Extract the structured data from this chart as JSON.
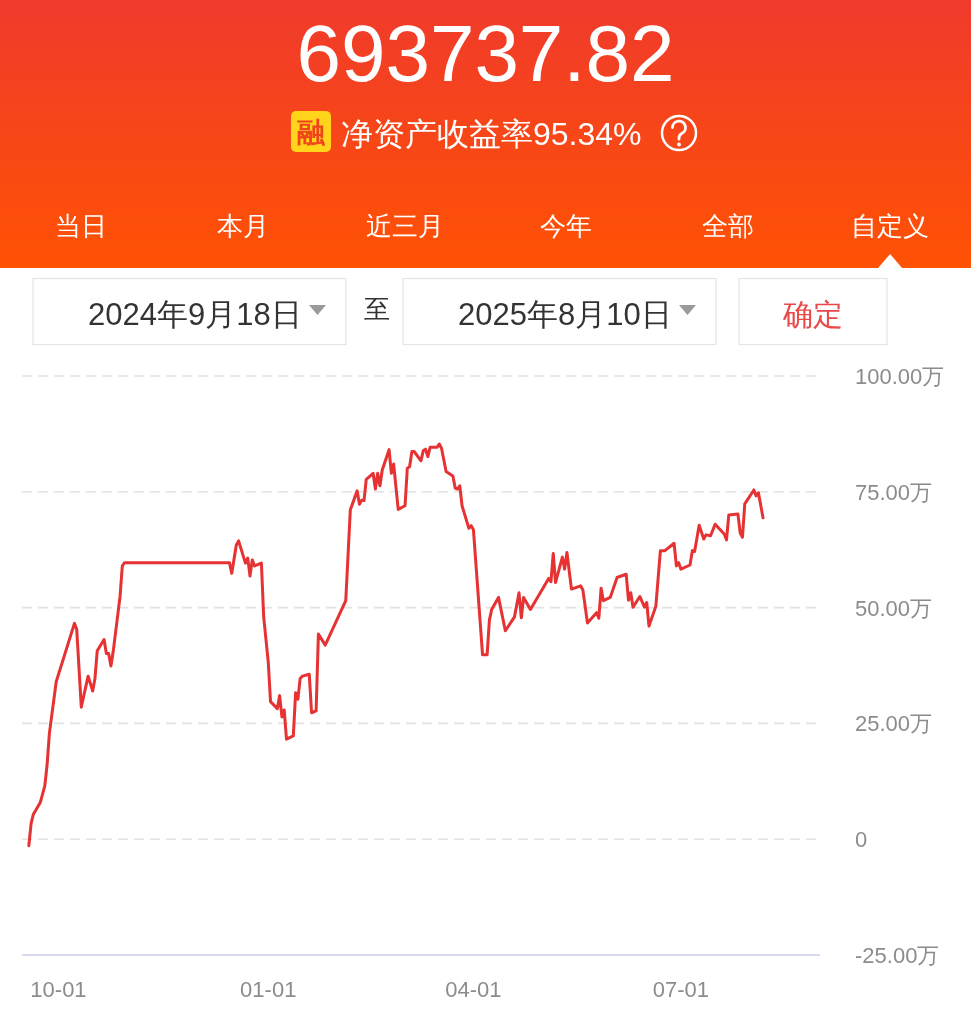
{
  "chart_data": {
    "type": "line",
    "title": "693737.82",
    "subtitle": "净资产收益率95.34%",
    "annotations": [
      "融",
      "当日",
      "本月",
      "近三月",
      "今年",
      "全部",
      "自定义",
      "2024年9月18日",
      "至",
      "2025年8月10日",
      "确定"
    ],
    "x": [
      "2024-09-18",
      "2024-09-19",
      "2024-09-20",
      "2024-09-23",
      "2024-09-25",
      "2024-09-26",
      "2024-09-27",
      "2024-09-30",
      "2024-10-08",
      "2024-10-09",
      "2024-10-11",
      "2024-10-14",
      "2024-10-16",
      "2024-10-17",
      "2024-10-18",
      "2024-10-21",
      "2024-10-22",
      "2024-10-23",
      "2024-10-24",
      "2024-10-25",
      "2024-10-28",
      "2024-10-29",
      "2024-10-30",
      "2024-12-15",
      "2024-12-16",
      "2024-12-18",
      "2024-12-19",
      "2024-12-22",
      "2024-12-23",
      "2024-12-24",
      "2024-12-25",
      "2024-12-26",
      "2024-12-29",
      "2024-12-30",
      "2025-01-01",
      "2025-01-02",
      "2025-01-05",
      "2025-01-06",
      "2025-01-07",
      "2025-01-08",
      "2025-01-09",
      "2025-01-12",
      "2025-01-13",
      "2025-01-14",
      "2025-01-15",
      "2025-01-16",
      "2025-01-19",
      "2025-01-20",
      "2025-01-22",
      "2025-01-23",
      "2025-01-26",
      "2025-02-04",
      "2025-02-06",
      "2025-02-09",
      "2025-02-10",
      "2025-02-11",
      "2025-02-12",
      "2025-02-13",
      "2025-02-16",
      "2025-02-17",
      "2025-02-18",
      "2025-02-19",
      "2025-02-20",
      "2025-02-23",
      "2025-02-24",
      "2025-02-25",
      "2025-02-27",
      "2025-03-02",
      "2025-03-03",
      "2025-03-04",
      "2025-03-05",
      "2025-03-06",
      "2025-03-09",
      "2025-03-10",
      "2025-03-11",
      "2025-03-12",
      "2025-03-13",
      "2025-03-16",
      "2025-03-17",
      "2025-03-18",
      "2025-03-20",
      "2025-03-23",
      "2025-03-24",
      "2025-03-25",
      "2025-03-26",
      "2025-03-27",
      "2025-03-30",
      "2025-03-31",
      "2025-04-01",
      "2025-04-05",
      "2025-04-07",
      "2025-04-08",
      "2025-04-09",
      "2025-04-12",
      "2025-04-15",
      "2025-04-19",
      "2025-04-21",
      "2025-04-22",
      "2025-04-23",
      "2025-04-26",
      "2025-05-04",
      "2025-05-05",
      "2025-05-06",
      "2025-05-07",
      "2025-05-10",
      "2025-05-11",
      "2025-05-12",
      "2025-05-14",
      "2025-05-18",
      "2025-05-19",
      "2025-05-21",
      "2025-05-25",
      "2025-05-26",
      "2025-05-27",
      "2025-05-28",
      "2025-05-31",
      "2025-06-03",
      "2025-06-07",
      "2025-06-08",
      "2025-06-09",
      "2025-06-10",
      "2025-06-13",
      "2025-06-15",
      "2025-06-16",
      "2025-06-17",
      "2025-06-20",
      "2025-06-22",
      "2025-06-24",
      "2025-06-28",
      "2025-06-29",
      "2025-06-30",
      "2025-07-01",
      "2025-07-05",
      "2025-07-06",
      "2025-07-07",
      "2025-07-09",
      "2025-07-11",
      "2025-07-12",
      "2025-07-14",
      "2025-07-16",
      "2025-07-20",
      "2025-07-21",
      "2025-07-22",
      "2025-07-26",
      "2025-07-27",
      "2025-07-28",
      "2025-07-29",
      "2025-08-02",
      "2025-08-03",
      "2025-08-04",
      "2025-08-06"
    ],
    "values": [
      -1.4,
      3.4,
      5.4,
      7.9,
      11.5,
      16.0,
      22.8,
      34.0,
      46.6,
      45.3,
      28.5,
      35.2,
      32.0,
      34.7,
      40.7,
      43.1,
      40.1,
      40.1,
      37.4,
      40.5,
      52.4,
      59.0,
      59.7,
      59.7,
      57.4,
      63.5,
      64.4,
      59.6,
      60.7,
      56.8,
      60.3,
      59.0,
      59.6,
      48.0,
      38.3,
      29.7,
      28.2,
      31.0,
      26.4,
      27.9,
      21.6,
      22.3,
      31.6,
      30.2,
      34.7,
      35.2,
      35.6,
      27.3,
      27.7,
      44.3,
      41.9,
      51.5,
      71.1,
      75.2,
      72.3,
      73.2,
      73.1,
      77.7,
      79.0,
      75.6,
      79.0,
      76.3,
      79.7,
      84.1,
      79.0,
      81.0,
      71.2,
      72.0,
      80.1,
      80.4,
      83.7,
      83.7,
      81.7,
      83.9,
      84.2,
      82.6,
      84.6,
      84.6,
      85.3,
      84.4,
      79.4,
      78.4,
      75.8,
      75.6,
      76.3,
      72.0,
      67.1,
      67.7,
      66.8,
      39.8,
      39.8,
      47.3,
      49.6,
      52.2,
      45.0,
      48.0,
      53.2,
      47.8,
      52.2,
      49.6,
      56.3,
      55.6,
      61.7,
      55.4,
      60.9,
      58.3,
      61.9,
      54.0,
      54.7,
      53.8,
      46.7,
      48.9,
      47.7,
      54.2,
      51.5,
      52.2,
      56.5,
      57.2,
      51.6,
      53.2,
      50.1,
      52.4,
      50.1,
      51.1,
      46.0,
      50.3,
      62.3,
      62.3,
      63.9,
      59.0,
      59.7,
      58.3,
      59.2,
      62.3,
      62.1,
      67.8,
      64.8,
      65.7,
      65.5,
      68.0,
      65.9,
      64.6,
      70.0,
      70.2,
      66.1,
      65.2,
      72.4,
      75.4,
      74.1,
      74.8,
      69.4
    ],
    "color": "#e63232",
    "line_style": "solid",
    "grid": "y",
    "xlim": [
      "2024-09-15",
      "2025-08-31"
    ],
    "xticks": [
      {
        "value": "2024-10-01",
        "label": "10-01"
      },
      {
        "value": "2025-01-01",
        "label": "01-01"
      },
      {
        "value": "2025-04-01",
        "label": "04-01"
      },
      {
        "value": "2025-07-01",
        "label": "07-01"
      }
    ],
    "ylim": [
      -25,
      100
    ],
    "yticks": [
      {
        "value": -25,
        "label": "-25.00万"
      },
      0,
      {
        "value": 25,
        "label": "25.00万"
      },
      {
        "value": 50,
        "label": "50.00万"
      },
      {
        "value": 75,
        "label": "75.00万"
      },
      {
        "value": 100,
        "label": "100.00万"
      }
    ]
  }
}
